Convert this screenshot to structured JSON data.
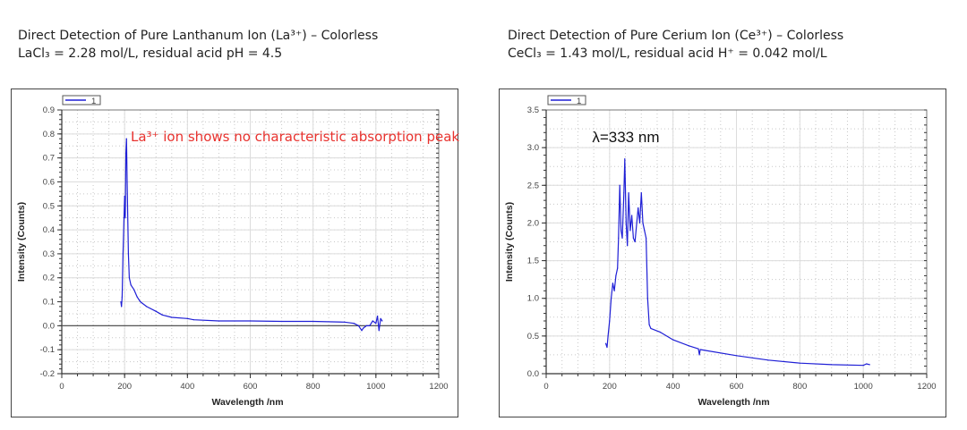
{
  "left": {
    "title_line1": "Direct Detection of Pure Lanthanum Ion (La³⁺) – Colorless",
    "title_line2": "LaCl₃ = 2.28 mol/L, residual acid pH = 4.5"
  },
  "right": {
    "title_line1": "Direct Detection of Pure Cerium Ion (Ce³⁺) – Colorless",
    "title_line2": "CeCl₃ = 1.43 mol/L, residual acid H⁺ = 0.042 mol/L"
  },
  "chart_data": [
    {
      "type": "line",
      "xlabel": "Wavelength /nm",
      "ylabel": "Intensity (Counts)",
      "xlim": [
        0,
        1200
      ],
      "ylim": [
        -0.2,
        0.9
      ],
      "xticks": [
        "0",
        "200",
        "400",
        "600",
        "800",
        "1000",
        "1200"
      ],
      "yticks": [
        "-0.2",
        "-0.1",
        "0.0",
        "0.1",
        "0.2",
        "0.3",
        "0.4",
        "0.5",
        "0.6",
        "0.7",
        "0.8",
        "0.9"
      ],
      "grid": true,
      "zero_line": true,
      "legend": {
        "position": "top-left",
        "entries": [
          "1"
        ]
      },
      "annotation": {
        "text": "La³⁺ ion shows no characteristic absorption peak",
        "color": "#e8322e",
        "x": 215,
        "y": 0.77
      },
      "series": [
        {
          "name": "1",
          "color": "#1f1fd6",
          "x": [
            188,
            190,
            192,
            195,
            198,
            200,
            202,
            204,
            206,
            208,
            212,
            215,
            220,
            230,
            240,
            250,
            270,
            300,
            320,
            350,
            400,
            420,
            500,
            600,
            700,
            800,
            900,
            930,
            945,
            955,
            960,
            970,
            980,
            990,
            1000,
            1005,
            1010,
            1015,
            1020
          ],
          "y": [
            0.1,
            0.08,
            0.12,
            0.3,
            0.45,
            0.54,
            0.45,
            0.72,
            0.78,
            0.6,
            0.3,
            0.2,
            0.17,
            0.15,
            0.12,
            0.1,
            0.08,
            0.06,
            0.045,
            0.035,
            0.03,
            0.025,
            0.02,
            0.02,
            0.018,
            0.018,
            0.015,
            0.01,
            0.0,
            -0.02,
            -0.01,
            0.0,
            0.0,
            0.02,
            0.01,
            0.04,
            -0.02,
            0.03,
            0.02
          ]
        }
      ]
    },
    {
      "type": "line",
      "xlabel": "Wavelength /nm",
      "ylabel": "Intensity (Counts)",
      "xlim": [
        0,
        1200
      ],
      "ylim": [
        0,
        3.5
      ],
      "xticks": [
        "0",
        "200",
        "400",
        "600",
        "800",
        "1000",
        "1200"
      ],
      "yticks": [
        "0.0",
        "0.5",
        "1.0",
        "1.5",
        "2.0",
        "2.5",
        "3.0",
        "3.5"
      ],
      "grid": true,
      "zero_line": false,
      "legend": {
        "position": "top-left",
        "entries": [
          "1"
        ]
      },
      "annotation": {
        "text": "λ=333 nm",
        "color": "#111111",
        "x": 145,
        "y": 3.07
      },
      "series": [
        {
          "name": "1",
          "color": "#1f1fd6",
          "x": [
            188,
            192,
            195,
            200,
            205,
            210,
            215,
            220,
            225,
            228,
            232,
            236,
            240,
            245,
            248,
            252,
            256,
            260,
            265,
            270,
            275,
            280,
            290,
            295,
            300,
            305,
            310,
            315,
            320,
            325,
            330,
            360,
            400,
            450,
            480,
            483,
            486,
            500,
            600,
            700,
            800,
            900,
            1000,
            1010,
            1020
          ],
          "y": [
            0.4,
            0.35,
            0.5,
            0.7,
            1.0,
            1.2,
            1.1,
            1.3,
            1.4,
            1.8,
            2.5,
            1.9,
            1.8,
            2.4,
            2.85,
            2.0,
            1.7,
            2.4,
            1.9,
            2.1,
            1.8,
            1.75,
            2.2,
            2.0,
            2.4,
            2.0,
            1.9,
            1.8,
            1.0,
            0.65,
            0.6,
            0.55,
            0.45,
            0.37,
            0.33,
            0.25,
            0.32,
            0.31,
            0.24,
            0.18,
            0.14,
            0.12,
            0.11,
            0.13,
            0.12
          ]
        }
      ]
    }
  ]
}
